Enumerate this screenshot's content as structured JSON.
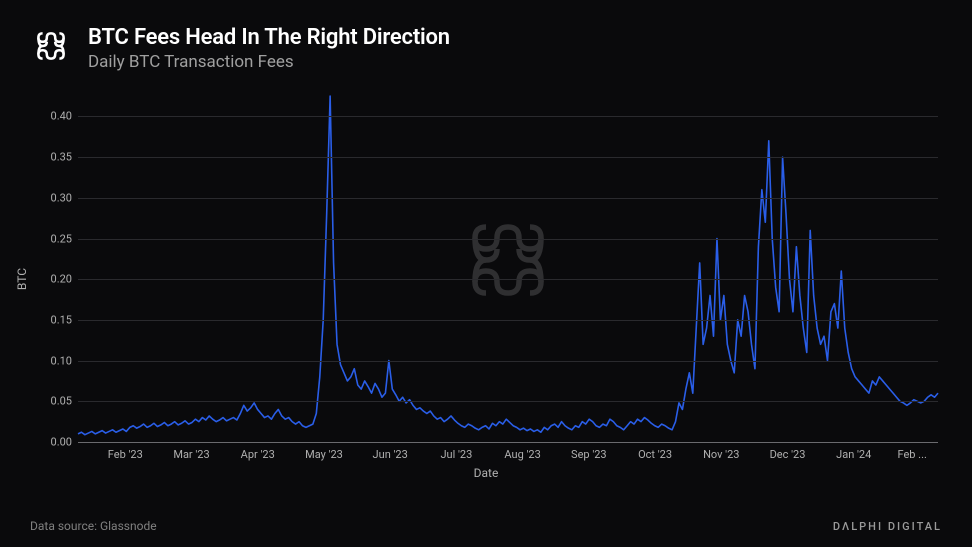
{
  "header": {
    "title": "BTC Fees Head In The Right Direction",
    "subtitle": "Daily BTC Transaction Fees"
  },
  "footer": {
    "data_source": "Data source: Glassnode",
    "brand": "DΛLPHI DIGITAL"
  },
  "chart": {
    "type": "line",
    "ylabel": "BTC",
    "xlabel": "Date",
    "ylim": [
      0,
      0.43
    ],
    "yticks": [
      0.0,
      0.05,
      0.1,
      0.15,
      0.2,
      0.25,
      0.3,
      0.35,
      0.4
    ],
    "ytick_labels": [
      "0.00",
      "0.05",
      "0.10",
      "0.15",
      "0.20",
      "0.25",
      "0.30",
      "0.35",
      "0.40"
    ],
    "xtick_labels": [
      "Feb '23",
      "Mar '23",
      "Apr '23",
      "May '23",
      "Jun '23",
      "Jul '23",
      "Aug '23",
      "Sep '23",
      "Oct '23",
      "Nov '23",
      "Dec '23",
      "Jan '24",
      "Feb ..."
    ],
    "xtick_positions": [
      0.055,
      0.132,
      0.209,
      0.286,
      0.363,
      0.44,
      0.517,
      0.594,
      0.671,
      0.748,
      0.825,
      0.902,
      0.97
    ],
    "line_color": "#2a5ee8",
    "line_width": 1.6,
    "grid_color": "#2a2a2e",
    "axis_color": "#6a6a6e",
    "background_color": "#0a0a0c",
    "text_color": "#b0b0b0",
    "title_color": "#ffffff",
    "subtitle_color": "#a0a0a0",
    "title_fontsize": 22,
    "subtitle_fontsize": 17,
    "tick_fontsize": 11,
    "label_fontsize": 12,
    "series": {
      "x": [
        0,
        1,
        2,
        3,
        4,
        5,
        6,
        7,
        8,
        9,
        10,
        11,
        12,
        13,
        14,
        15,
        16,
        17,
        18,
        19,
        20,
        21,
        22,
        23,
        24,
        25,
        26,
        27,
        28,
        29,
        30,
        31,
        32,
        33,
        34,
        35,
        36,
        37,
        38,
        39,
        40,
        41,
        42,
        43,
        44,
        45,
        46,
        47,
        48,
        49,
        50,
        51,
        52,
        53,
        54,
        55,
        56,
        57,
        58,
        59,
        60,
        61,
        62,
        63,
        64,
        65,
        66,
        67,
        68,
        69,
        70,
        71,
        72,
        73,
        74,
        75,
        76,
        77,
        78,
        79,
        80,
        81,
        82,
        83,
        84,
        85,
        86,
        87,
        88,
        89,
        90,
        91,
        92,
        93,
        94,
        95,
        96,
        97,
        98,
        99,
        100,
        101,
        102,
        103,
        104,
        105,
        106,
        107,
        108,
        109,
        110,
        111,
        112,
        113,
        114,
        115,
        116,
        117,
        118,
        119,
        120,
        121,
        122,
        123,
        124,
        125,
        126,
        127,
        128,
        129,
        130,
        131,
        132,
        133,
        134,
        135,
        136,
        137,
        138,
        139,
        140,
        141,
        142,
        143,
        144,
        145,
        146,
        147,
        148,
        149,
        150,
        151,
        152,
        153,
        154,
        155,
        156,
        157,
        158,
        159,
        160,
        161,
        162,
        163,
        164,
        165,
        166,
        167,
        168,
        169,
        170,
        171,
        172,
        173,
        174,
        175,
        176,
        177,
        178,
        179,
        180,
        181,
        182,
        183,
        184,
        185,
        186,
        187,
        188,
        189,
        190,
        191,
        192,
        193,
        194,
        195,
        196,
        197,
        198,
        199,
        200,
        201,
        202,
        203,
        204,
        205,
        206,
        207,
        208,
        209,
        210,
        211,
        212,
        213,
        214,
        215,
        216,
        217,
        218,
        219,
        220,
        221,
        222,
        223,
        224,
        225,
        226,
        227,
        228,
        229,
        230,
        231,
        232,
        233,
        234,
        235,
        236,
        237,
        238,
        239,
        240,
        241,
        242,
        243,
        244,
        245,
        246,
        247,
        248,
        249
      ],
      "y": [
        0.01,
        0.012,
        0.009,
        0.011,
        0.013,
        0.01,
        0.012,
        0.014,
        0.011,
        0.013,
        0.015,
        0.012,
        0.014,
        0.016,
        0.013,
        0.018,
        0.02,
        0.017,
        0.019,
        0.022,
        0.018,
        0.02,
        0.023,
        0.019,
        0.021,
        0.024,
        0.02,
        0.022,
        0.025,
        0.021,
        0.023,
        0.026,
        0.022,
        0.024,
        0.028,
        0.025,
        0.03,
        0.027,
        0.032,
        0.028,
        0.025,
        0.027,
        0.03,
        0.026,
        0.028,
        0.03,
        0.027,
        0.035,
        0.045,
        0.038,
        0.042,
        0.048,
        0.04,
        0.035,
        0.03,
        0.032,
        0.028,
        0.035,
        0.04,
        0.032,
        0.028,
        0.03,
        0.025,
        0.022,
        0.025,
        0.02,
        0.018,
        0.02,
        0.022,
        0.035,
        0.08,
        0.15,
        0.28,
        0.425,
        0.22,
        0.12,
        0.095,
        0.085,
        0.075,
        0.08,
        0.09,
        0.07,
        0.065,
        0.075,
        0.068,
        0.06,
        0.072,
        0.065,
        0.055,
        0.06,
        0.1,
        0.065,
        0.058,
        0.05,
        0.055,
        0.048,
        0.052,
        0.045,
        0.04,
        0.042,
        0.038,
        0.035,
        0.038,
        0.032,
        0.028,
        0.03,
        0.025,
        0.028,
        0.032,
        0.027,
        0.023,
        0.02,
        0.018,
        0.022,
        0.02,
        0.017,
        0.015,
        0.018,
        0.02,
        0.016,
        0.023,
        0.02,
        0.025,
        0.022,
        0.028,
        0.024,
        0.02,
        0.018,
        0.015,
        0.017,
        0.014,
        0.016,
        0.013,
        0.015,
        0.012,
        0.018,
        0.015,
        0.02,
        0.022,
        0.018,
        0.025,
        0.02,
        0.017,
        0.015,
        0.02,
        0.018,
        0.025,
        0.022,
        0.028,
        0.025,
        0.02,
        0.018,
        0.022,
        0.02,
        0.028,
        0.025,
        0.02,
        0.018,
        0.015,
        0.02,
        0.025,
        0.022,
        0.028,
        0.025,
        0.03,
        0.027,
        0.023,
        0.02,
        0.018,
        0.022,
        0.02,
        0.017,
        0.015,
        0.025,
        0.048,
        0.04,
        0.065,
        0.085,
        0.06,
        0.14,
        0.22,
        0.12,
        0.14,
        0.18,
        0.13,
        0.25,
        0.15,
        0.18,
        0.12,
        0.1,
        0.085,
        0.15,
        0.13,
        0.18,
        0.16,
        0.12,
        0.09,
        0.24,
        0.31,
        0.27,
        0.37,
        0.25,
        0.19,
        0.16,
        0.35,
        0.28,
        0.2,
        0.16,
        0.24,
        0.18,
        0.14,
        0.11,
        0.26,
        0.18,
        0.14,
        0.12,
        0.13,
        0.1,
        0.16,
        0.17,
        0.14,
        0.21,
        0.14,
        0.11,
        0.09,
        0.08,
        0.075,
        0.07,
        0.065,
        0.06,
        0.075,
        0.07,
        0.08,
        0.075,
        0.07,
        0.065,
        0.06,
        0.055,
        0.05,
        0.048,
        0.045,
        0.048,
        0.052,
        0.05,
        0.048,
        0.05,
        0.055,
        0.058,
        0.055,
        0.06
      ]
    }
  }
}
